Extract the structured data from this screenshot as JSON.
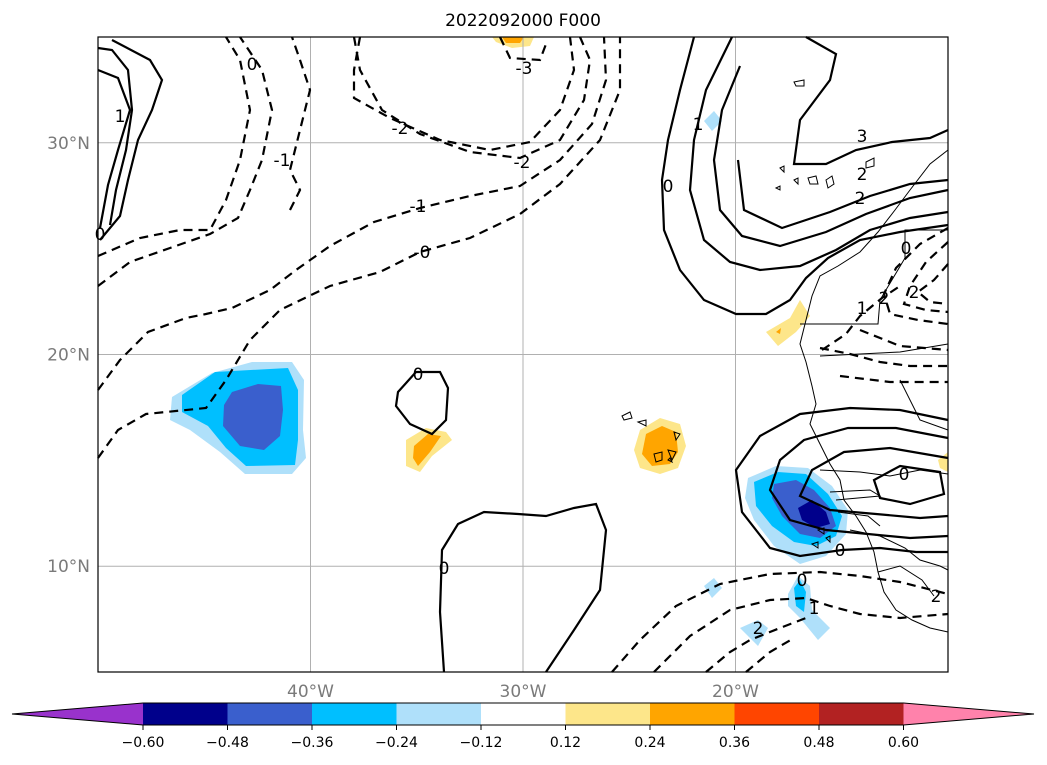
{
  "title": "2022092000 F000",
  "map": {
    "lat_labels": [
      "30°N",
      "20°N",
      "10°N"
    ],
    "lon_labels": [
      "40°W",
      "30°W",
      "20°W"
    ],
    "lat_values": [
      30,
      20,
      10
    ],
    "lon_values": [
      -40,
      -30,
      -20
    ],
    "extent": {
      "lon_min": -50,
      "lon_max": -10,
      "lat_min": 5,
      "lat_max": 35
    },
    "gridlines": true,
    "contour_labels": [
      "0",
      "1",
      "-1",
      "-2",
      "-1",
      "0",
      "-3",
      "-2",
      "-1",
      "-0",
      "0",
      "1",
      "0",
      "3",
      "2",
      "2",
      "0",
      "1",
      "2",
      "2",
      "0",
      "0",
      "0",
      "0",
      "1",
      "2",
      "2"
    ]
  },
  "colorbar": {
    "ticks": [
      "−0.60",
      "−0.48",
      "−0.36",
      "−0.24",
      "−0.12",
      "0.12",
      "0.24",
      "0.36",
      "0.48",
      "0.60"
    ],
    "colors": [
      "#9932cc",
      "#00008b",
      "#3a5fcd",
      "#00bfff",
      "#afe0fa",
      "#ffffff",
      "#fde68a",
      "#ffa500",
      "#ff4500",
      "#b22222",
      "#ff82ab"
    ],
    "extend": "both"
  }
}
